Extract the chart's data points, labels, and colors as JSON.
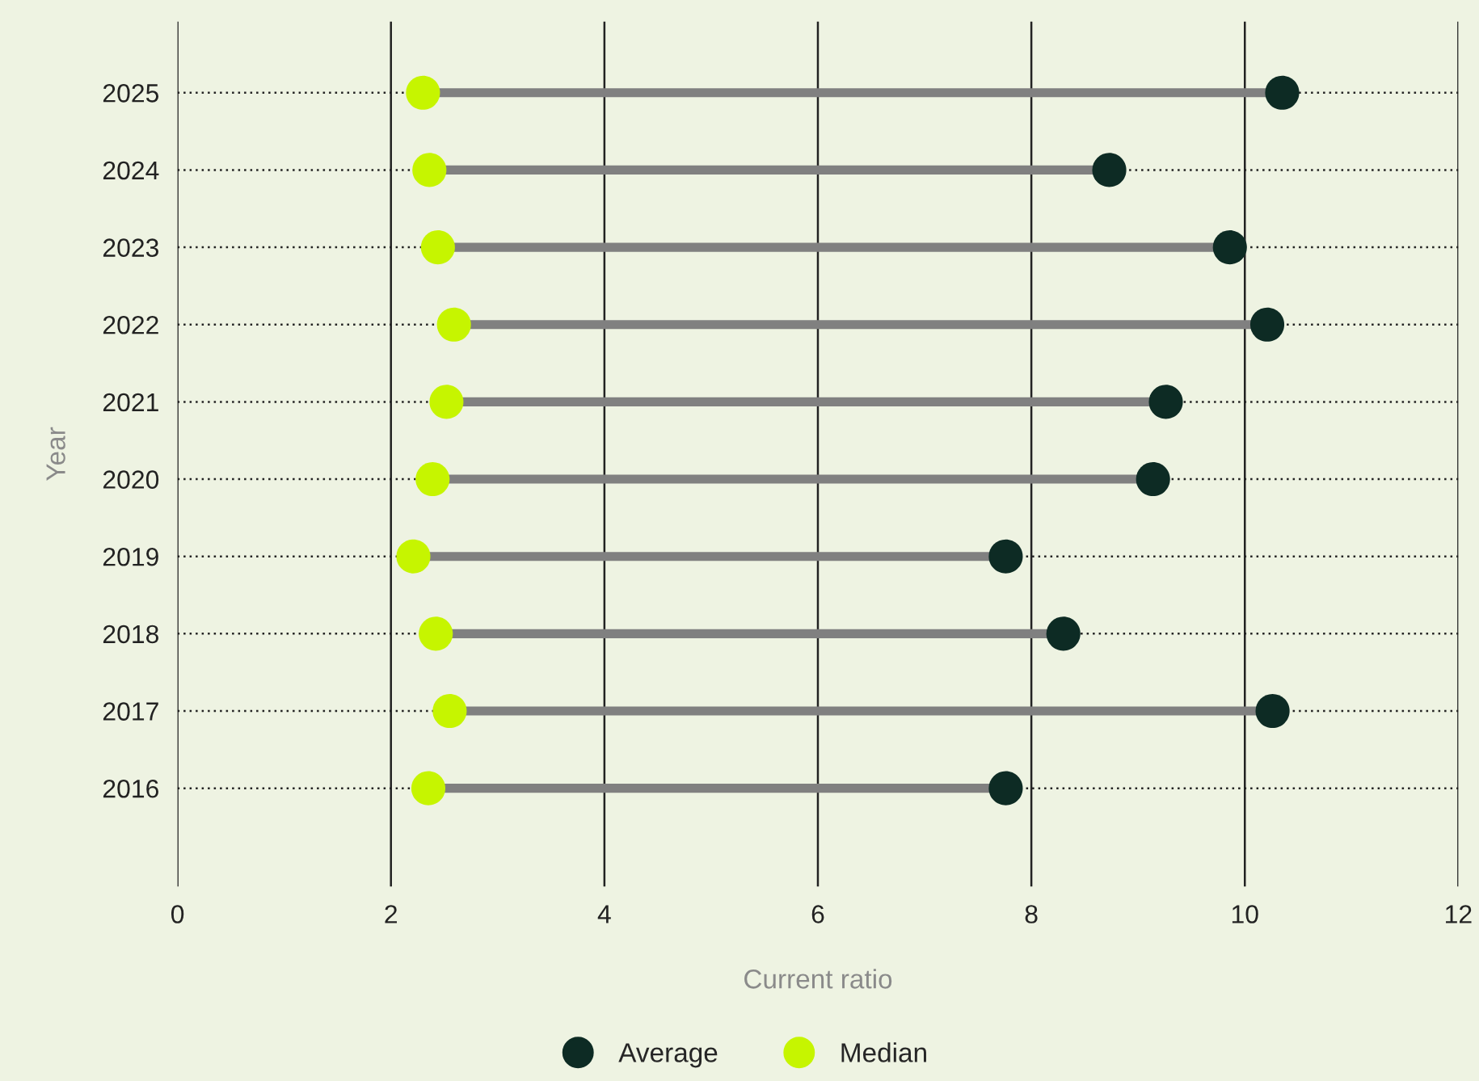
{
  "chart_data": {
    "type": "scatter",
    "orientation": "horizontal",
    "xlabel": "Current ratio",
    "ylabel": "Year",
    "categories": [
      "2025",
      "2024",
      "2023",
      "2022",
      "2021",
      "2020",
      "2019",
      "2018",
      "2017",
      "2016"
    ],
    "series": [
      {
        "name": "Average",
        "color": "#0d2b24",
        "values": [
          10.35,
          8.73,
          9.86,
          10.21,
          9.26,
          9.14,
          7.76,
          8.3,
          10.26,
          7.76
        ]
      },
      {
        "name": "Median",
        "color": "#c6f500",
        "values": [
          2.3,
          2.36,
          2.44,
          2.59,
          2.52,
          2.39,
          2.21,
          2.42,
          2.55,
          2.35
        ]
      }
    ],
    "xlim": [
      0,
      12
    ],
    "xticks": [
      0,
      2,
      4,
      6,
      8,
      10,
      12
    ],
    "grid": true,
    "legend": "bottom",
    "marker": "circle"
  }
}
